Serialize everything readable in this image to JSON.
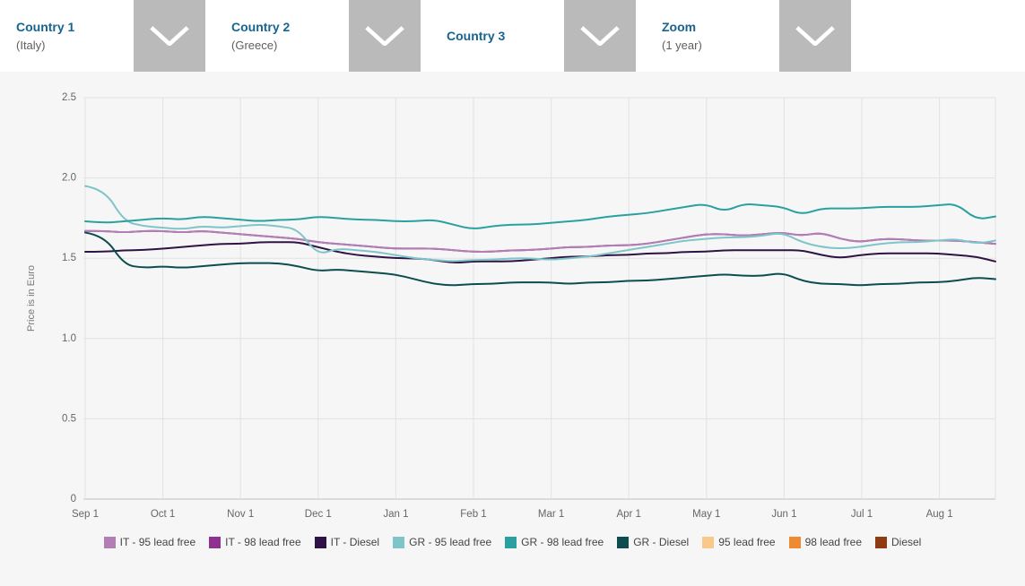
{
  "header": {
    "dropdowns": [
      {
        "title": "Country 1",
        "subtitle": "(Italy)"
      },
      {
        "title": "Country 2",
        "subtitle": "(Greece)"
      },
      {
        "title": "Country 3",
        "subtitle": ""
      },
      {
        "title": "Zoom",
        "subtitle": "(1 year)"
      }
    ]
  },
  "colors": {
    "accent_blue": "#18648f",
    "dropdown_gray": "#bababa",
    "chart_background": "#f6f6f6"
  },
  "chart_data": {
    "type": "line",
    "title": "",
    "xlabel": "",
    "ylabel": "Price is in  Euro",
    "ylim": [
      0,
      2.5
    ],
    "yticks": [
      0,
      0.5,
      1.0,
      1.5,
      2.0,
      2.5
    ],
    "ytick_labels": [
      "0",
      "0.5",
      "1.0",
      "1.5",
      "2.0",
      "2.5"
    ],
    "x_tick_labels": [
      "Sep 1",
      "Oct 1",
      "Nov 1",
      "Dec 1",
      "Jan 1",
      "Feb 1",
      "Mar 1",
      "Apr 1",
      "May 1",
      "Jun 1",
      "Jul 1",
      "Aug 1"
    ],
    "points_per_month": 4,
    "grid": true,
    "legend_position": "bottom",
    "series": [
      {
        "name": "IT - 95 lead free",
        "color": "#b17fb3",
        "values": [
          1.67,
          1.67,
          1.66,
          1.67,
          1.67,
          1.66,
          1.67,
          1.66,
          1.65,
          1.64,
          1.63,
          1.62,
          1.6,
          1.59,
          1.58,
          1.57,
          1.56,
          1.56,
          1.56,
          1.55,
          1.54,
          1.54,
          1.55,
          1.55,
          1.56,
          1.57,
          1.57,
          1.58,
          1.58,
          1.59,
          1.61,
          1.63,
          1.65,
          1.65,
          1.64,
          1.65,
          1.66,
          1.64,
          1.66,
          1.62,
          1.6,
          1.62,
          1.62,
          1.61,
          1.61,
          1.61,
          1.6,
          1.59
        ]
      },
      {
        "name": "IT - 98 lead free",
        "color": "#8e3190",
        "values": [
          1.67,
          1.67,
          1.66,
          1.67,
          1.67,
          1.66,
          1.67,
          1.66,
          1.65,
          1.64,
          1.63,
          1.62,
          1.6,
          1.59,
          1.58,
          1.57,
          1.56,
          1.56,
          1.56,
          1.55,
          1.54,
          1.54,
          1.55,
          1.55,
          1.56,
          1.57,
          1.57,
          1.58,
          1.58,
          1.59,
          1.61,
          1.63,
          1.65,
          1.65,
          1.64,
          1.65,
          1.66,
          1.64,
          1.66,
          1.62,
          1.6,
          1.62,
          1.62,
          1.61,
          1.61,
          1.61,
          1.6,
          1.59
        ]
      },
      {
        "name": "IT - Diesel",
        "color": "#2e1344",
        "values": [
          1.54,
          1.54,
          1.55,
          1.55,
          1.56,
          1.57,
          1.58,
          1.59,
          1.59,
          1.6,
          1.6,
          1.6,
          1.57,
          1.54,
          1.52,
          1.51,
          1.5,
          1.5,
          1.49,
          1.47,
          1.48,
          1.48,
          1.48,
          1.49,
          1.5,
          1.51,
          1.51,
          1.52,
          1.52,
          1.53,
          1.53,
          1.54,
          1.54,
          1.55,
          1.55,
          1.55,
          1.55,
          1.55,
          1.52,
          1.5,
          1.52,
          1.53,
          1.53,
          1.53,
          1.53,
          1.52,
          1.51,
          1.48
        ]
      },
      {
        "name": "GR - 95 lead free",
        "color": "#7ec5c9",
        "values": [
          1.95,
          1.93,
          1.73,
          1.7,
          1.69,
          1.68,
          1.7,
          1.69,
          1.7,
          1.71,
          1.7,
          1.68,
          1.52,
          1.56,
          1.55,
          1.54,
          1.52,
          1.5,
          1.49,
          1.48,
          1.49,
          1.49,
          1.5,
          1.5,
          1.49,
          1.5,
          1.51,
          1.53,
          1.55,
          1.57,
          1.59,
          1.61,
          1.62,
          1.63,
          1.63,
          1.64,
          1.66,
          1.6,
          1.57,
          1.56,
          1.57,
          1.59,
          1.6,
          1.6,
          1.61,
          1.62,
          1.59,
          1.61
        ]
      },
      {
        "name": "GR - 98 lead free",
        "color": "#2aa0a0",
        "values": [
          1.73,
          1.72,
          1.73,
          1.74,
          1.75,
          1.74,
          1.76,
          1.75,
          1.74,
          1.73,
          1.74,
          1.74,
          1.76,
          1.75,
          1.74,
          1.74,
          1.73,
          1.73,
          1.74,
          1.71,
          1.68,
          1.7,
          1.71,
          1.71,
          1.72,
          1.73,
          1.74,
          1.76,
          1.77,
          1.78,
          1.8,
          1.82,
          1.84,
          1.79,
          1.84,
          1.83,
          1.82,
          1.77,
          1.81,
          1.81,
          1.81,
          1.82,
          1.82,
          1.82,
          1.83,
          1.84,
          1.74,
          1.76
        ]
      },
      {
        "name": "GR - Diesel",
        "color": "#0d4d4d",
        "values": [
          1.66,
          1.64,
          1.46,
          1.44,
          1.45,
          1.44,
          1.45,
          1.46,
          1.47,
          1.47,
          1.47,
          1.45,
          1.42,
          1.43,
          1.42,
          1.41,
          1.4,
          1.37,
          1.34,
          1.33,
          1.34,
          1.34,
          1.35,
          1.35,
          1.35,
          1.34,
          1.35,
          1.35,
          1.36,
          1.36,
          1.37,
          1.38,
          1.39,
          1.4,
          1.39,
          1.39,
          1.41,
          1.36,
          1.34,
          1.34,
          1.33,
          1.34,
          1.34,
          1.35,
          1.35,
          1.36,
          1.38,
          1.37
        ]
      }
    ],
    "extra_legend": [
      {
        "name": "95 lead free",
        "color": "#f9c98c"
      },
      {
        "name": "98 lead free",
        "color": "#ee8b30"
      },
      {
        "name": "Diesel",
        "color": "#8f3a10"
      }
    ]
  }
}
